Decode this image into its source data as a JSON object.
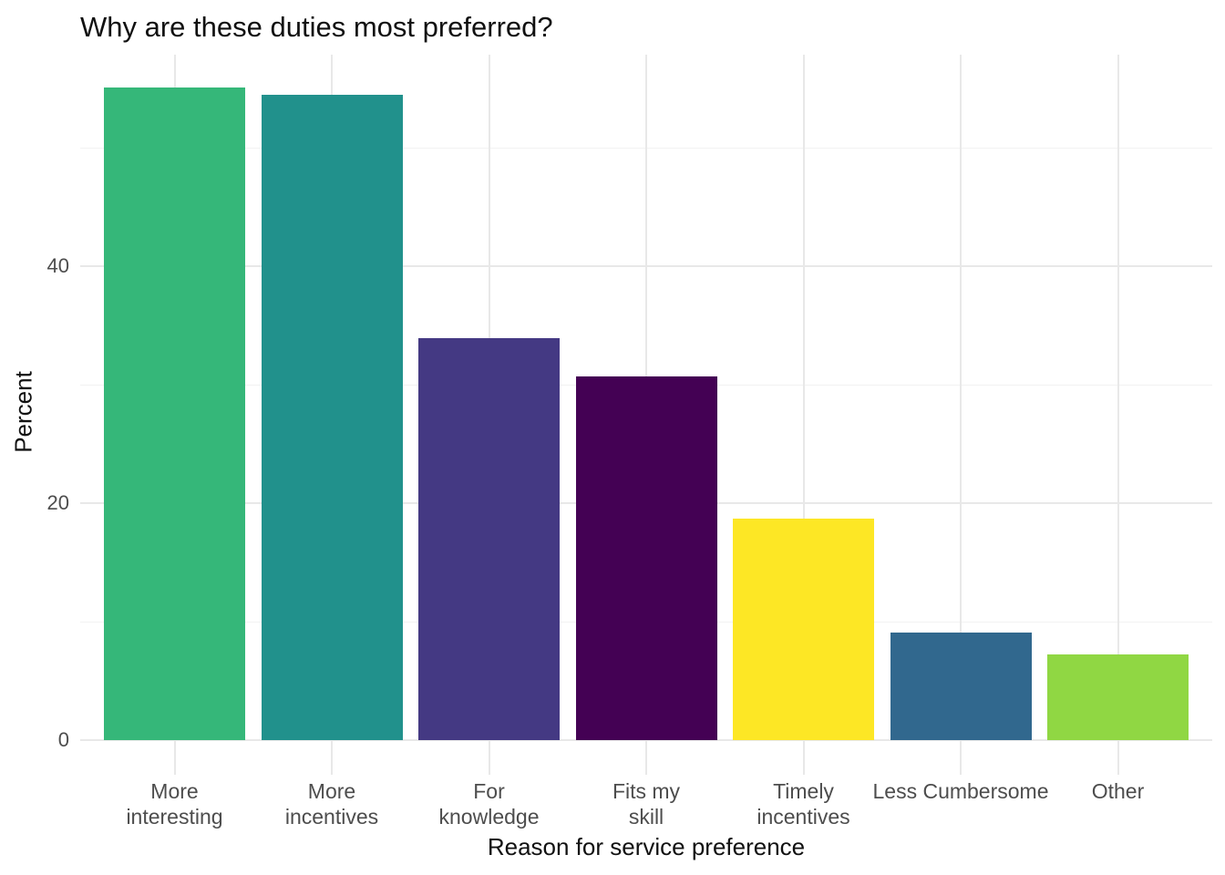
{
  "chart_data": {
    "type": "bar",
    "title": "Why are these duties most preferred?",
    "xlabel": "Reason for service preference",
    "ylabel": "Percent",
    "categories": [
      "More\ninteresting",
      "More\nincentives",
      "For\nknowledge",
      "Fits my\nskill",
      "Timely\nincentives",
      "Less Cumbersome",
      "Other"
    ],
    "values": [
      55.1,
      54.5,
      33.9,
      30.7,
      18.7,
      9.1,
      7.2
    ],
    "bar_colors": [
      "#35b779",
      "#21918c",
      "#443983",
      "#440154",
      "#fde725",
      "#31688e",
      "#90d743"
    ],
    "y_axis": {
      "major_ticks": [
        0,
        20,
        40
      ],
      "minor_ticks": [
        10,
        30,
        50
      ],
      "range": [
        0,
        57.8
      ]
    },
    "grid": "horizontal major+minor, vertical major at category centers",
    "legend": "none",
    "colors": {
      "background": "#ffffff",
      "grid_major": "#e8e8e8",
      "grid_minor": "#f2f2f2",
      "tick_text": "#4d4d4d",
      "title_text": "#111111"
    }
  }
}
